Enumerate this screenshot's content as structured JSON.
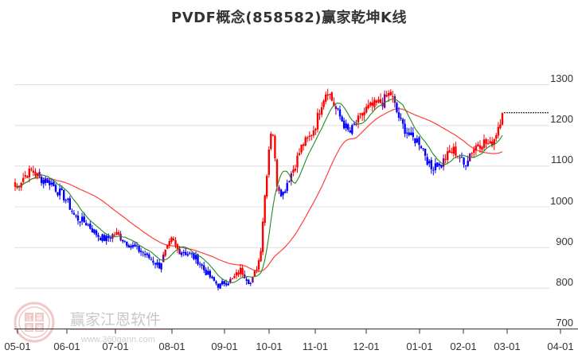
{
  "title": "PVDF概念(858582)赢家乾坤K线",
  "watermark": {
    "brand": "赢家江恩软件",
    "url": "www.360gann.com",
    "logo_chars": [
      "江",
      "赢",
      "恩",
      "家"
    ]
  },
  "colors": {
    "up": "#ff0000",
    "down": "#0000ff",
    "neutral": "#800080",
    "ma_short": "#228b22",
    "ma_long": "#ff4040",
    "grid": "#e0e0e0",
    "axis": "#333333",
    "last_price_line": "#000000"
  },
  "chart_data": {
    "type": "candlestick",
    "title": "PVDF概念(858582)赢家乾坤K线",
    "xlabel": "",
    "ylabel": "",
    "ylim": [
      700,
      1340
    ],
    "yticks": [
      700,
      800,
      900,
      1000,
      1100,
      1200,
      1300
    ],
    "xticks": [
      "05-01",
      "06-01",
      "07-01",
      "08-01",
      "09-01",
      "10-01",
      "11-01",
      "12-01",
      "01-01",
      "02-01",
      "03-01",
      "04-01"
    ],
    "grid": true,
    "legend": null,
    "series": [
      {
        "name": "K线",
        "type": "candlestick"
      },
      {
        "name": "短期均线",
        "type": "line",
        "color": "#228b22"
      },
      {
        "name": "长期均线",
        "type": "line",
        "color": "#ff4040"
      }
    ],
    "last_close": 1231,
    "price_path": [
      [
        "05-01",
        1050
      ],
      [
        "05-05",
        1075
      ],
      [
        "05-10",
        1090
      ],
      [
        "05-15",
        1070
      ],
      [
        "05-22",
        1060
      ],
      [
        "05-26",
        1040
      ],
      [
        "05-29",
        1030
      ],
      [
        "06-01",
        1015
      ],
      [
        "06-06",
        975
      ],
      [
        "06-13",
        960
      ],
      [
        "06-20",
        930
      ],
      [
        "06-25",
        920
      ],
      [
        "07-01",
        935
      ],
      [
        "07-08",
        910
      ],
      [
        "07-15",
        890
      ],
      [
        "07-21",
        870
      ],
      [
        "07-25",
        855
      ],
      [
        "07-27",
        875
      ],
      [
        "08-01",
        920
      ],
      [
        "08-04",
        895
      ],
      [
        "08-11",
        885
      ],
      [
        "08-16",
        870
      ],
      [
        "08-20",
        845
      ],
      [
        "08-25",
        820
      ],
      [
        "08-29",
        805
      ],
      [
        "09-01",
        815
      ],
      [
        "09-06",
        820
      ],
      [
        "09-12",
        845
      ],
      [
        "09-15",
        830
      ],
      [
        "09-19",
        810
      ],
      [
        "09-22",
        845
      ],
      [
        "09-25",
        880
      ],
      [
        "09-27",
        980
      ],
      [
        "10-01",
        1150
      ],
      [
        "10-03",
        1210
      ],
      [
        "10-06",
        1060
      ],
      [
        "10-10",
        1030
      ],
      [
        "10-13",
        1060
      ],
      [
        "10-18",
        1100
      ],
      [
        "10-23",
        1150
      ],
      [
        "10-28",
        1170
      ],
      [
        "11-01",
        1200
      ],
      [
        "11-05",
        1260
      ],
      [
        "11-08",
        1290
      ],
      [
        "11-13",
        1240
      ],
      [
        "11-17",
        1210
      ],
      [
        "11-21",
        1180
      ],
      [
        "11-26",
        1210
      ],
      [
        "12-01",
        1240
      ],
      [
        "12-06",
        1250
      ],
      [
        "12-11",
        1260
      ],
      [
        "12-15",
        1280
      ],
      [
        "12-19",
        1230
      ],
      [
        "12-22",
        1200
      ],
      [
        "12-27",
        1170
      ],
      [
        "01-01",
        1160
      ],
      [
        "01-05",
        1130
      ],
      [
        "01-09",
        1090
      ],
      [
        "01-12",
        1110
      ],
      [
        "01-16",
        1100
      ],
      [
        "01-19",
        1120
      ],
      [
        "01-25",
        1140
      ],
      [
        "01-30",
        1120
      ],
      [
        "02-01",
        1100
      ],
      [
        "02-05",
        1130
      ],
      [
        "02-09",
        1150
      ],
      [
        "02-14",
        1160
      ],
      [
        "02-18",
        1150
      ],
      [
        "02-21",
        1170
      ],
      [
        "02-23",
        1195
      ],
      [
        "02-26",
        1231
      ]
    ]
  },
  "y_axis": {
    "labels": [
      "1300",
      "1200",
      "1100",
      "1000",
      "900",
      "800",
      "700"
    ]
  },
  "x_axis": {
    "labels": [
      "05-01",
      "06-01",
      "07-01",
      "08-01",
      "09-01",
      "10-01",
      "11-01",
      "12-01",
      "01-01",
      "02-01",
      "03-01",
      "04-01"
    ]
  }
}
